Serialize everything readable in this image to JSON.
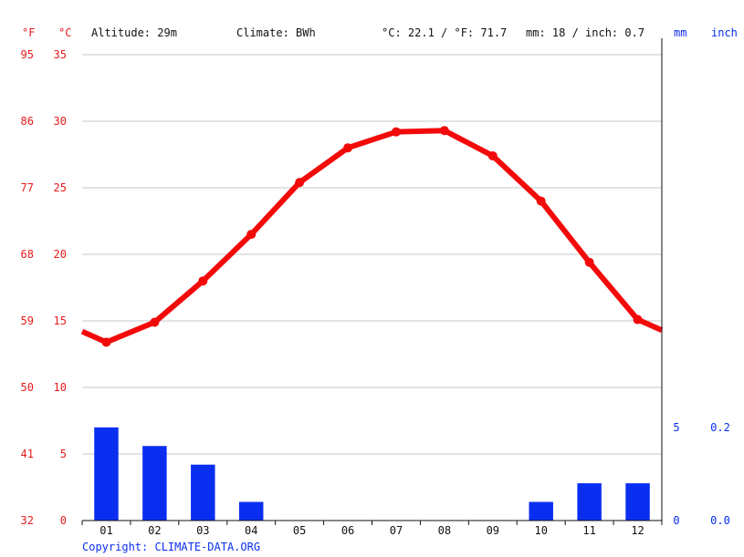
{
  "header": {
    "unit_f": "°F",
    "unit_c": "°C",
    "altitude": "Altitude: 29m",
    "climate": "Climate: BWh",
    "temp_avg": "°C: 22.1 / °F: 71.7",
    "precip_total": "mm: 18 / inch: 0.7",
    "unit_mm": "mm",
    "unit_inch": "inch"
  },
  "copyright": "Copyright: CLIMATE-DATA.ORG",
  "colors": {
    "temperature": "#f20a0a",
    "precipitation": "#0a2ef0",
    "grid": "#c8c8c8"
  },
  "chart_data": {
    "type": "bar+line",
    "categories": [
      "01",
      "02",
      "03",
      "04",
      "05",
      "06",
      "07",
      "08",
      "09",
      "10",
      "11",
      "12"
    ],
    "temp_axis": {
      "c_ticks": [
        0,
        5,
        10,
        15,
        20,
        25,
        30,
        35
      ],
      "f_ticks": [
        32,
        41,
        50,
        59,
        68,
        77,
        86,
        95
      ],
      "ylim": [
        0,
        35
      ]
    },
    "precip_axis": {
      "mm_ticks": [
        0,
        5
      ],
      "inch_ticks": [
        "0.0",
        "0.2"
      ],
      "ylim": [
        0,
        25
      ]
    },
    "series": [
      {
        "name": "temperature",
        "type": "line",
        "values": [
          13.4,
          14.9,
          18.0,
          21.5,
          25.4,
          28.0,
          29.2,
          29.3,
          27.4,
          24.0,
          19.4,
          15.1
        ],
        "edge_values": [
          14.2,
          14.3
        ]
      },
      {
        "name": "precipitation",
        "type": "bar",
        "values": [
          5,
          4,
          3,
          1,
          0,
          0,
          0,
          0,
          0,
          1,
          2,
          2
        ]
      }
    ]
  }
}
